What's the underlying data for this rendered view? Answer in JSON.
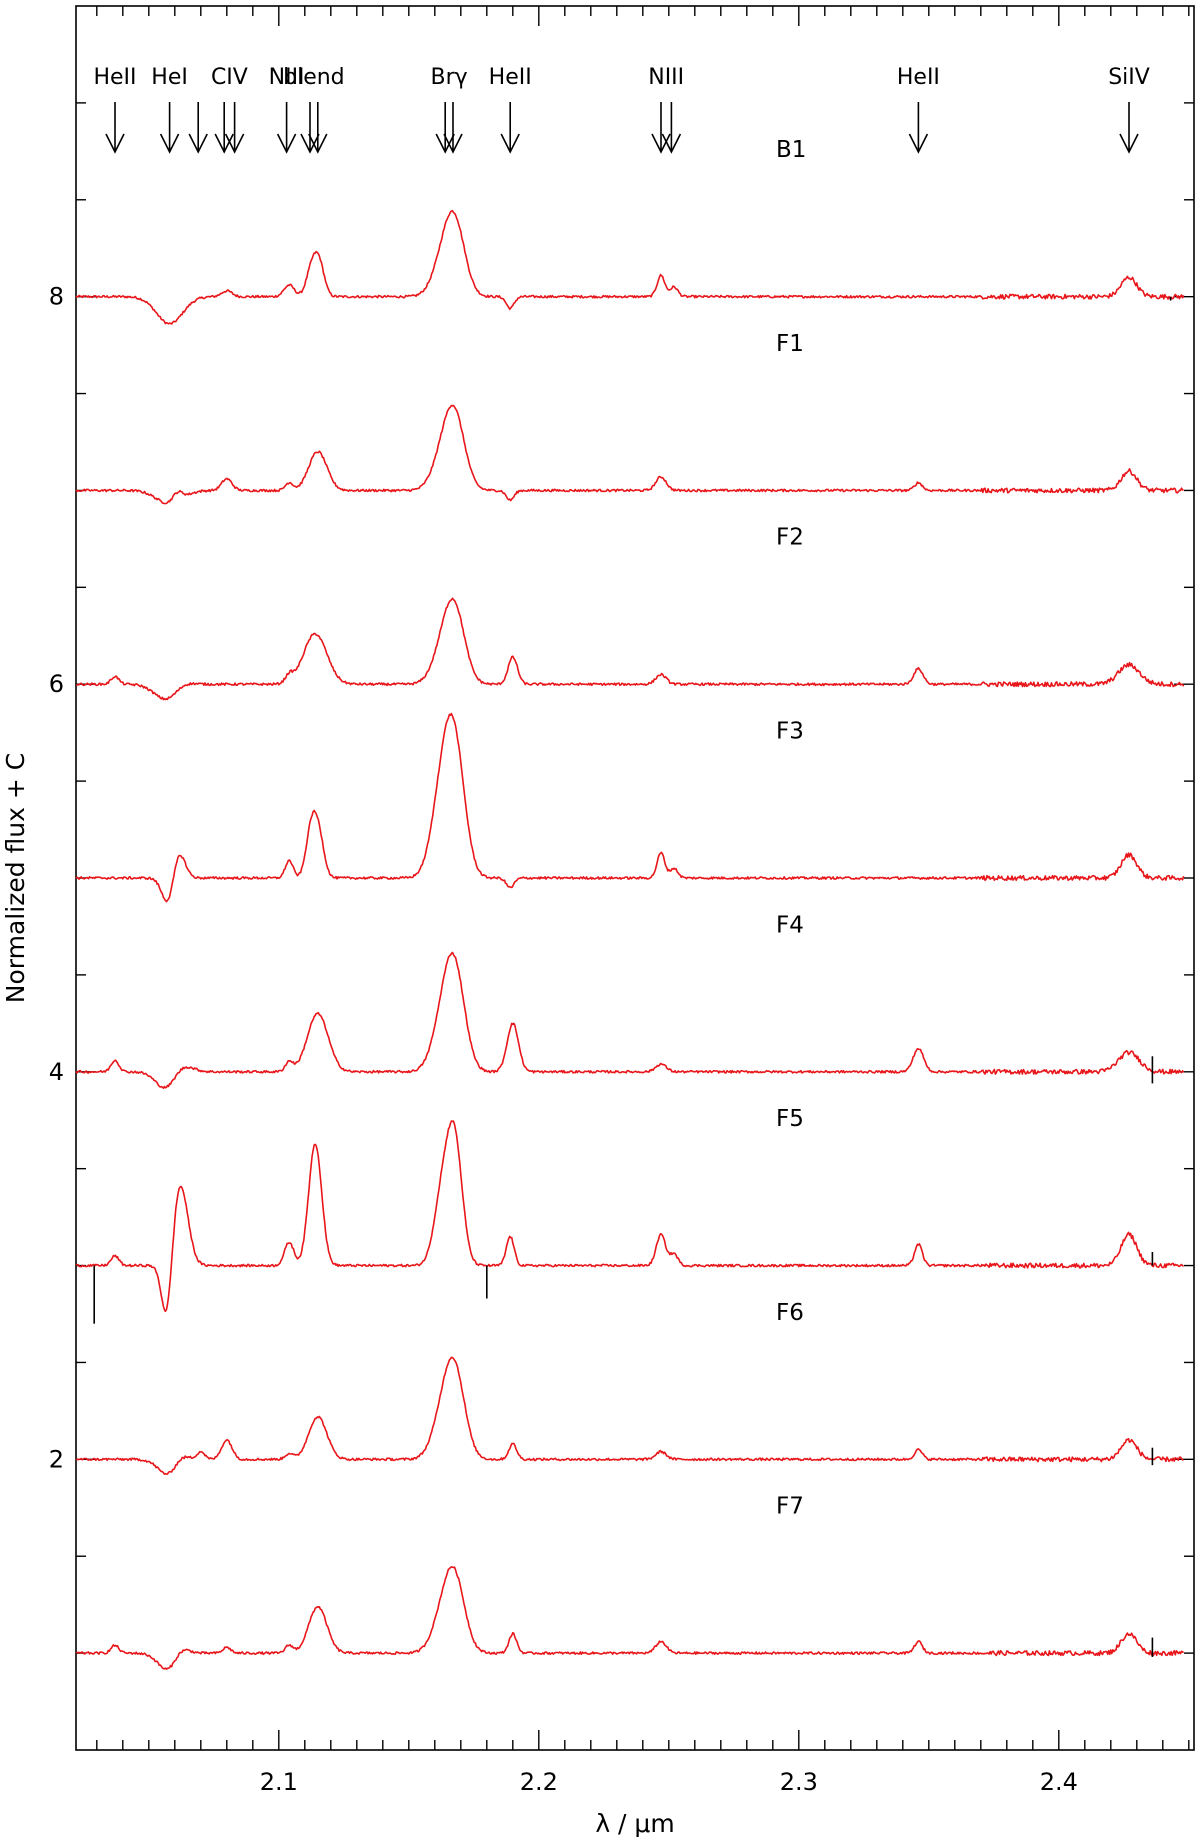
{
  "chart_data": {
    "type": "line",
    "xlabel": "λ / μm",
    "ylabel": "Normalized flux + C",
    "xlim": [
      2.022,
      2.452
    ],
    "ylim": [
      0.5,
      9.5
    ],
    "x_ticks": [
      2.1,
      2.2,
      2.3,
      2.4
    ],
    "x_tick_labels": [
      "2.1",
      "2.2",
      "2.3",
      "2.4"
    ],
    "y_ticks": [
      2,
      4,
      6,
      8
    ],
    "y_tick_labels": [
      "2",
      "4",
      "6",
      "8"
    ],
    "grid": false,
    "line_color": "#e8161a",
    "telluric_color": "#000000",
    "line_ids": [
      {
        "label": "HeII",
        "wavelengths": [
          2.037
        ]
      },
      {
        "label": "HeI",
        "wavelengths": [
          2.058
        ]
      },
      {
        "label": "",
        "wavelengths": [
          2.069
        ]
      },
      {
        "label": "CIV",
        "wavelengths": [
          2.079,
          2.083
        ]
      },
      {
        "label": "NIII",
        "wavelengths": [
          2.103
        ]
      },
      {
        "label": "blend",
        "wavelengths": [
          2.112,
          2.115
        ]
      },
      {
        "label": "Brγ",
        "wavelengths": [
          2.164,
          2.167
        ]
      },
      {
        "label": "HeII",
        "wavelengths": [
          2.189
        ]
      },
      {
        "label": "NIII",
        "wavelengths": [
          2.247,
          2.251
        ]
      },
      {
        "label": "HeII",
        "wavelengths": [
          2.346
        ]
      },
      {
        "label": "SiIV",
        "wavelengths": [
          2.427
        ]
      }
    ],
    "series": [
      {
        "name": "B1",
        "offset": 8.0,
        "lines": [
          [
            2.058,
            -0.14,
            0.005
          ],
          [
            2.08,
            0.03,
            0.002
          ],
          [
            2.104,
            0.06,
            0.002
          ],
          [
            2.1125,
            0.13,
            0.002
          ],
          [
            2.1155,
            0.17,
            0.002
          ],
          [
            2.1625,
            0.12,
            0.004
          ],
          [
            2.1675,
            0.38,
            0.004
          ],
          [
            2.189,
            -0.06,
            0.0015
          ],
          [
            2.247,
            0.11,
            0.0015
          ],
          [
            2.252,
            0.05,
            0.0015
          ],
          [
            2.427,
            0.1,
            0.003
          ]
        ]
      },
      {
        "name": "F1",
        "offset": 7.0,
        "lines": [
          [
            2.058,
            -0.07,
            0.005
          ],
          [
            2.061,
            0.05,
            0.002
          ],
          [
            2.08,
            0.06,
            0.002
          ],
          [
            2.104,
            0.04,
            0.0015
          ],
          [
            2.115,
            0.2,
            0.0035
          ],
          [
            2.1625,
            0.12,
            0.004
          ],
          [
            2.1675,
            0.38,
            0.004
          ],
          [
            2.189,
            -0.05,
            0.0015
          ],
          [
            2.247,
            0.07,
            0.002
          ],
          [
            2.346,
            0.04,
            0.0015
          ],
          [
            2.427,
            0.1,
            0.003
          ]
        ]
      },
      {
        "name": "F2",
        "offset": 6.0,
        "lines": [
          [
            2.037,
            0.04,
            0.0015
          ],
          [
            2.058,
            -0.1,
            0.005
          ],
          [
            2.062,
            0.05,
            0.004
          ],
          [
            2.104,
            0.04,
            0.0015
          ],
          [
            2.114,
            0.26,
            0.0045
          ],
          [
            2.1625,
            0.12,
            0.004
          ],
          [
            2.1675,
            0.38,
            0.004
          ],
          [
            2.19,
            0.14,
            0.0018
          ],
          [
            2.247,
            0.05,
            0.002
          ],
          [
            2.346,
            0.08,
            0.0018
          ],
          [
            2.427,
            0.1,
            0.004
          ]
        ]
      },
      {
        "name": "F3",
        "offset": 5.0,
        "lines": [
          [
            2.058,
            -0.18,
            0.0025
          ],
          [
            2.061,
            0.18,
            0.0025
          ],
          [
            2.104,
            0.09,
            0.0015
          ],
          [
            2.1125,
            0.25,
            0.002
          ],
          [
            2.1155,
            0.2,
            0.002
          ],
          [
            2.1625,
            0.35,
            0.004
          ],
          [
            2.1675,
            0.65,
            0.004
          ],
          [
            2.189,
            -0.05,
            0.0015
          ],
          [
            2.247,
            0.13,
            0.0015
          ],
          [
            2.252,
            0.05,
            0.0015
          ],
          [
            2.427,
            0.12,
            0.003
          ]
        ]
      },
      {
        "name": "F4",
        "offset": 4.0,
        "lines": [
          [
            2.037,
            0.06,
            0.0015
          ],
          [
            2.057,
            -0.1,
            0.004
          ],
          [
            2.062,
            0.05,
            0.004
          ],
          [
            2.104,
            0.05,
            0.0015
          ],
          [
            2.115,
            0.3,
            0.004
          ],
          [
            2.1625,
            0.18,
            0.004
          ],
          [
            2.1675,
            0.52,
            0.004
          ],
          [
            2.19,
            0.25,
            0.0022
          ],
          [
            2.247,
            0.04,
            0.002
          ],
          [
            2.346,
            0.12,
            0.002
          ],
          [
            2.427,
            0.1,
            0.004
          ]
        ]
      },
      {
        "name": "F5",
        "offset": 3.0,
        "lines": [
          [
            2.037,
            0.05,
            0.0015
          ],
          [
            2.057,
            -0.32,
            0.002
          ],
          [
            2.062,
            0.42,
            0.003
          ],
          [
            2.104,
            0.12,
            0.0018
          ],
          [
            2.114,
            0.63,
            0.0025
          ],
          [
            2.1625,
            0.32,
            0.003
          ],
          [
            2.1675,
            0.65,
            0.003
          ],
          [
            2.189,
            0.15,
            0.0015
          ],
          [
            2.247,
            0.16,
            0.0018
          ],
          [
            2.252,
            0.06,
            0.0015
          ],
          [
            2.346,
            0.11,
            0.0015
          ],
          [
            2.427,
            0.16,
            0.003
          ]
        ]
      },
      {
        "name": "F6",
        "offset": 2.0,
        "lines": [
          [
            2.058,
            -0.09,
            0.004
          ],
          [
            2.062,
            0.05,
            0.003
          ],
          [
            2.07,
            0.04,
            0.0015
          ],
          [
            2.08,
            0.1,
            0.002
          ],
          [
            2.104,
            0.03,
            0.0015
          ],
          [
            2.115,
            0.22,
            0.0035
          ],
          [
            2.1625,
            0.15,
            0.004
          ],
          [
            2.1675,
            0.45,
            0.004
          ],
          [
            2.19,
            0.08,
            0.0015
          ],
          [
            2.247,
            0.04,
            0.002
          ],
          [
            2.346,
            0.05,
            0.0015
          ],
          [
            2.427,
            0.1,
            0.003
          ]
        ]
      },
      {
        "name": "F7",
        "offset": 1.0,
        "lines": [
          [
            2.037,
            0.04,
            0.0015
          ],
          [
            2.058,
            -0.1,
            0.004
          ],
          [
            2.062,
            0.06,
            0.003
          ],
          [
            2.08,
            0.03,
            0.0015
          ],
          [
            2.104,
            0.04,
            0.0015
          ],
          [
            2.115,
            0.24,
            0.0035
          ],
          [
            2.1625,
            0.13,
            0.004
          ],
          [
            2.1675,
            0.38,
            0.004
          ],
          [
            2.19,
            0.1,
            0.0015
          ],
          [
            2.247,
            0.06,
            0.002
          ],
          [
            2.346,
            0.06,
            0.0015
          ],
          [
            2.427,
            0.1,
            0.003
          ]
        ]
      }
    ],
    "telluric_residuals": [
      {
        "series": "F5",
        "x": 2.029,
        "y": [
          2.7,
          3.0
        ]
      },
      {
        "series": "F5",
        "x": 2.18,
        "y": [
          2.83,
          3.0
        ]
      },
      {
        "series": "F5",
        "x": 2.436,
        "y": [
          3.0,
          3.07
        ]
      },
      {
        "series": "F4",
        "x": 2.436,
        "y": [
          3.94,
          4.08
        ]
      },
      {
        "series": "F6",
        "x": 2.436,
        "y": [
          1.97,
          2.06
        ]
      },
      {
        "series": "F7",
        "x": 2.436,
        "y": [
          0.98,
          1.08
        ]
      },
      {
        "series": "B1",
        "x": 2.443,
        "y": [
          7.98,
          8.0
        ]
      }
    ]
  }
}
